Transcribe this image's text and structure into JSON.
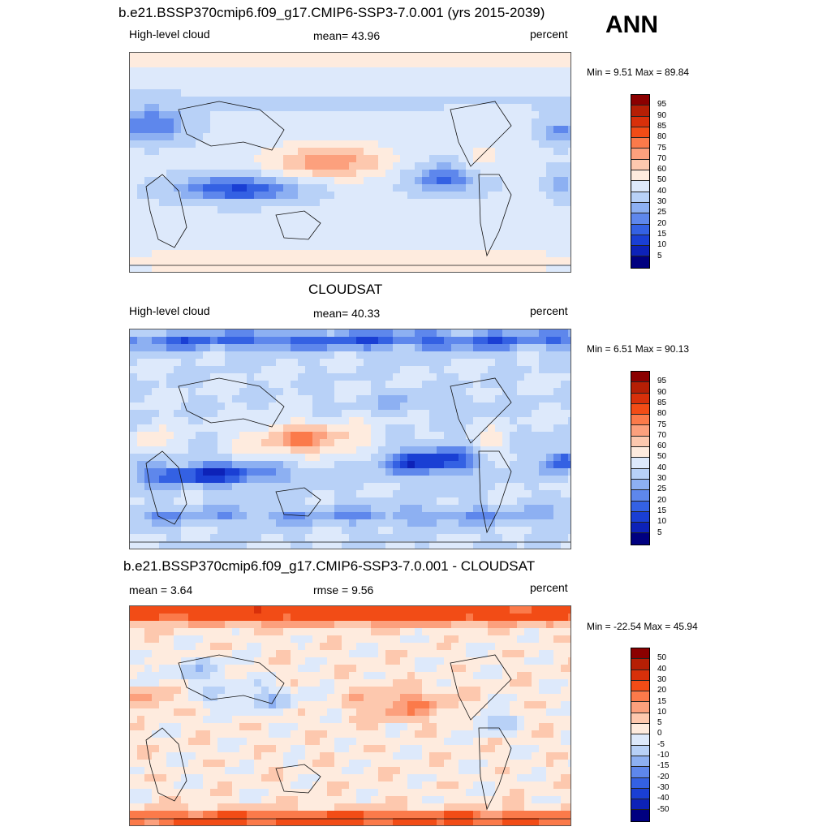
{
  "season": "ANN",
  "panels": [
    {
      "title": "b.e21.BSSP370cmip6.f09_g17.CMIP6-SSP3-7.0.001 (yrs 2015-2039)",
      "left_label": "High-level cloud",
      "center_label": "mean=  43.96",
      "right_label": "percent",
      "minmax": "Min =   9.51 Max =  89.84",
      "colorbar_labels": [
        "95",
        "90",
        "85",
        "80",
        "75",
        "70",
        "60",
        "50",
        "40",
        "30",
        "25",
        "20",
        "15",
        "10",
        "5"
      ],
      "colorbar_colors": [
        "#8b0000",
        "#b51f05",
        "#d8300a",
        "#f24c16",
        "#fb7a4a",
        "#fca07d",
        "#fdc8ae",
        "#feebde",
        "#dde9fb",
        "#b8d1f7",
        "#8db0f2",
        "#5e87ec",
        "#3461e3",
        "#1a3fd4",
        "#0d22b8",
        "#000080"
      ],
      "field": "model"
    },
    {
      "title": "CLOUDSAT",
      "left_label": "High-level cloud",
      "center_label": "mean=  40.33",
      "right_label": "percent",
      "minmax": "Min =   6.51 Max =  90.13",
      "colorbar_labels": [
        "95",
        "90",
        "85",
        "80",
        "75",
        "70",
        "60",
        "50",
        "40",
        "30",
        "25",
        "20",
        "15",
        "10",
        "5"
      ],
      "colorbar_colors": [
        "#8b0000",
        "#b51f05",
        "#d8300a",
        "#f24c16",
        "#fb7a4a",
        "#fca07d",
        "#fdc8ae",
        "#feebde",
        "#dde9fb",
        "#b8d1f7",
        "#8db0f2",
        "#5e87ec",
        "#3461e3",
        "#1a3fd4",
        "#0d22b8",
        "#000080"
      ],
      "field": "obs"
    },
    {
      "title": "b.e21.BSSP370cmip6.f09_g17.CMIP6-SSP3-7.0.001 - CLOUDSAT",
      "left_label": "mean =   3.64",
      "center_label": "rmse =   9.56",
      "right_label": "percent",
      "minmax": "Min = -22.54 Max =  45.94",
      "colorbar_labels": [
        "50",
        "40",
        "30",
        "20",
        "15",
        "10",
        "5",
        "0",
        "-5",
        "-10",
        "-15",
        "-20",
        "-30",
        "-40",
        "-50"
      ],
      "colorbar_colors": [
        "#8b0000",
        "#b51f05",
        "#d8300a",
        "#f24c16",
        "#fb7a4a",
        "#fca07d",
        "#fdc8ae",
        "#feebde",
        "#dde9fb",
        "#b8d1f7",
        "#8db0f2",
        "#5e87ec",
        "#3461e3",
        "#1a3fd4",
        "#0d22b8",
        "#000080"
      ],
      "field": "diff"
    }
  ]
}
